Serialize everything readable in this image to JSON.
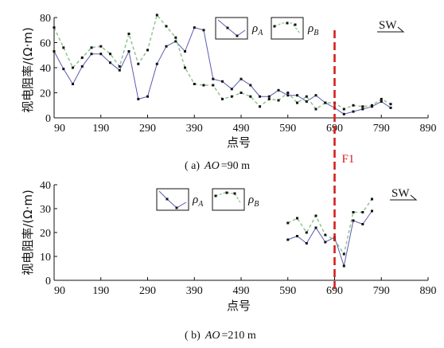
{
  "chart_data": [
    {
      "type": "line",
      "caption_prefix": "( a)",
      "caption_var": "AO",
      "caption_value": "=90  m",
      "ylabel": "视电阻率/(Ω·m)",
      "xlabel": "点号",
      "xlim": [
        90,
        890
      ],
      "ylim": [
        0,
        80
      ],
      "xticks": [
        "90",
        "190",
        "290",
        "390",
        "490",
        "590",
        "690",
        "790",
        "890"
      ],
      "yticks": [
        "0",
        "20",
        "40",
        "60",
        "80"
      ],
      "fault_label": "F1",
      "fault_x": 690,
      "direction_label": "SW",
      "series": [
        {
          "name": "ρ",
          "subscript": "A",
          "color": "#5b5bb0",
          "dashed": false,
          "x": [
            90,
            110,
            130,
            150,
            170,
            190,
            210,
            230,
            250,
            270,
            290,
            310,
            330,
            350,
            370,
            390,
            410,
            430,
            450,
            470,
            490,
            510,
            530,
            550,
            570,
            590,
            610,
            630,
            650,
            670,
            690,
            710,
            730,
            750,
            770,
            790,
            810
          ],
          "y": [
            53,
            39,
            27,
            41,
            51,
            51,
            44,
            38,
            53,
            15,
            17,
            43,
            57,
            61,
            53,
            72,
            70,
            31,
            29,
            23,
            31,
            26,
            17,
            17,
            22,
            18,
            18,
            13,
            18,
            12,
            8,
            3,
            5,
            7,
            9,
            13,
            8
          ]
        },
        {
          "name": "ρ",
          "subscript": "B",
          "color": "#8fc48f",
          "dashed": true,
          "x": [
            90,
            110,
            130,
            150,
            170,
            190,
            210,
            230,
            250,
            270,
            290,
            310,
            330,
            350,
            370,
            390,
            410,
            430,
            450,
            470,
            490,
            510,
            530,
            550,
            570,
            590,
            610,
            630,
            650,
            670,
            690,
            710,
            730,
            750,
            770,
            790,
            810
          ],
          "y": [
            72,
            56,
            40,
            48,
            56,
            57,
            51,
            41,
            67,
            43,
            54,
            82,
            73,
            64,
            40,
            27,
            26,
            26,
            15,
            17,
            20,
            17,
            9,
            15,
            14,
            20,
            12,
            17,
            7,
            12,
            12,
            7,
            10,
            9,
            10,
            15,
            11
          ]
        }
      ]
    },
    {
      "type": "line",
      "caption_prefix": "( b)",
      "caption_var": "AO",
      "caption_value": "=210  m",
      "ylabel": "视电阻率/(Ω·m)",
      "xlabel": "点号",
      "xlim": [
        90,
        890
      ],
      "ylim": [
        0,
        40
      ],
      "xticks": [
        "90",
        "190",
        "290",
        "390",
        "490",
        "590",
        "690",
        "790",
        "890"
      ],
      "yticks": [
        "0",
        "10",
        "20",
        "30",
        "40"
      ],
      "fault_x": 690,
      "direction_label": "SW",
      "series": [
        {
          "name": "ρ",
          "subscript": "A",
          "color": "#5b5bb0",
          "dashed": false,
          "x": [
            590,
            610,
            630,
            650,
            670,
            690,
            710,
            730,
            750,
            770
          ],
          "y": [
            17,
            18.5,
            15.5,
            22,
            16,
            18,
            6,
            25,
            23.5,
            29
          ]
        },
        {
          "name": "ρ",
          "subscript": "B",
          "color": "#8fc48f",
          "dashed": true,
          "x": [
            590,
            610,
            630,
            650,
            670,
            690,
            710,
            730,
            750,
            770
          ],
          "y": [
            24,
            26,
            20,
            27,
            19,
            17,
            11,
            28.5,
            28.5,
            34
          ]
        }
      ]
    }
  ]
}
